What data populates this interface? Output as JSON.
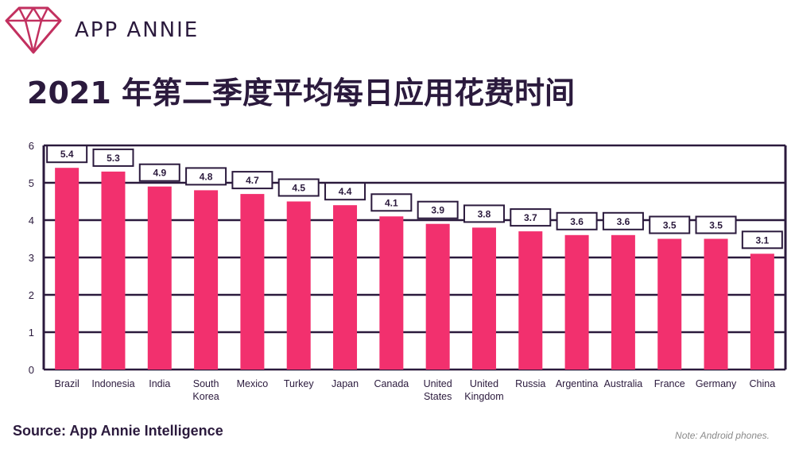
{
  "brand": {
    "name": "APP ANNIE",
    "logo_icon": "diamond-logo-icon"
  },
  "title": "2021 年第二季度平均每日应用花费时间",
  "source": "Source: App Annie Intelligence",
  "note": "Note: Android phones.",
  "colors": {
    "bar": "#f2306e",
    "frame": "#2b1a3d",
    "text": "#2b1a3d"
  },
  "chart_data": {
    "type": "bar",
    "categories": [
      "Brazil",
      "Indonesia",
      "India",
      "South Korea",
      "Mexico",
      "Turkey",
      "Japan",
      "Canada",
      "United States",
      "United Kingdom",
      "Russia",
      "Argentina",
      "Australia",
      "France",
      "Germany",
      "China"
    ],
    "values": [
      5.4,
      5.3,
      4.9,
      4.8,
      4.7,
      4.5,
      4.4,
      4.1,
      3.9,
      3.8,
      3.7,
      3.6,
      3.6,
      3.5,
      3.5,
      3.1
    ],
    "ylim": [
      0,
      6
    ],
    "yticks": [
      0,
      1,
      2,
      3,
      4,
      5,
      6
    ],
    "grid": true,
    "legend": "none"
  }
}
